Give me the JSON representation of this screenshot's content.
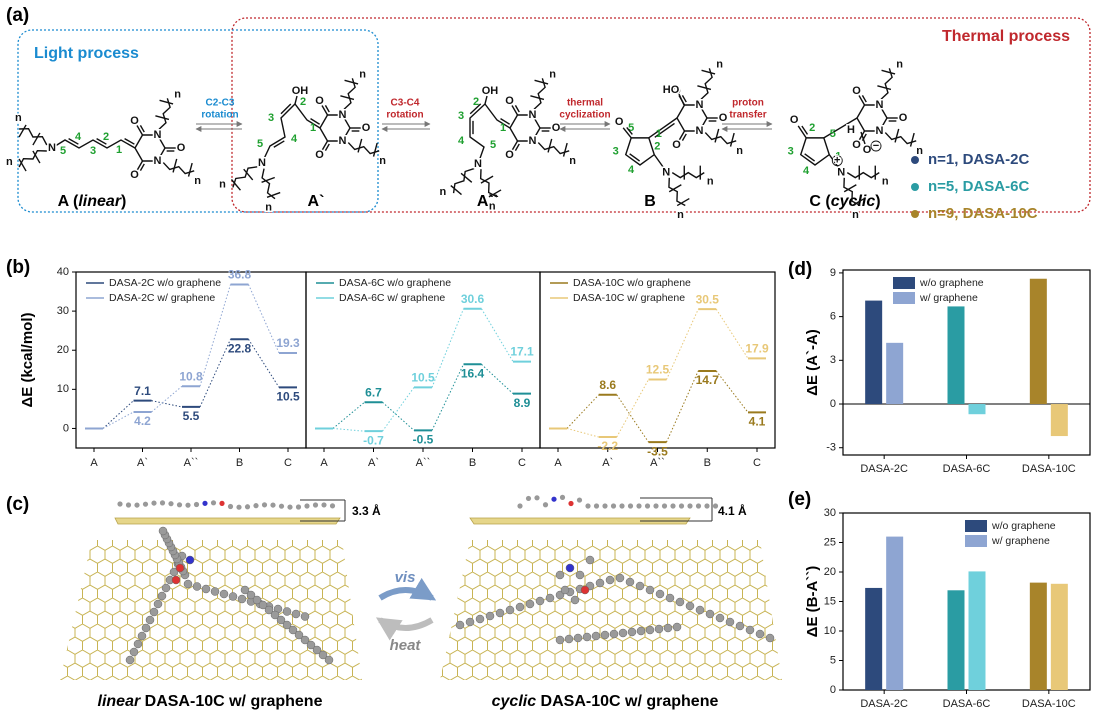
{
  "panel_labels": {
    "a": "(a)",
    "b": "(b)",
    "c": "(c)",
    "d": "(d)",
    "e": "(e)"
  },
  "scheme": {
    "light_process": "Light process",
    "thermal_process": "Thermal process",
    "atoms": {
      "O": "O",
      "N": "N",
      "OH": "OH",
      "HO": "HO",
      "H": "H",
      "n": "n",
      "plus": "+",
      "minus": "−"
    },
    "positions": [
      1,
      2,
      3,
      4,
      5
    ],
    "structures": [
      {
        "label": [
          "A (",
          "linear",
          ")"
        ]
      },
      {
        "label": [
          "A`"
        ]
      },
      {
        "label": [
          "A``"
        ]
      },
      {
        "label": [
          "B"
        ]
      },
      {
        "label": [
          "C (",
          "cyclic",
          ")"
        ]
      }
    ],
    "steps": [
      [
        "C2-C3",
        "rotation"
      ],
      [
        "C3-C4",
        "rotation"
      ],
      [
        "thermal",
        "cyclization"
      ],
      [
        "proton",
        "transfer"
      ]
    ],
    "legend": [
      {
        "label": "n=1, DASA-2C",
        "color": "#2d4a7c"
      },
      {
        "label": "n=5, DASA-6C",
        "color": "#2a9ca3"
      },
      {
        "label": "n=9, DASA-10C",
        "color": "#a8842a"
      }
    ]
  },
  "graphene_panel": {
    "gaps": [
      "3.3 Å",
      "4.1 Å"
    ],
    "forward": "vis",
    "backward": "heat",
    "captions": [
      [
        "linear",
        " DASA-10C w/ graphene"
      ],
      [
        "cyclic",
        " DASA-10C w/ graphene"
      ]
    ]
  },
  "chart_data": [
    {
      "type": "energy_profile",
      "ylabel": "ΔE (kcal/mol)",
      "ylim": [
        -5,
        40
      ],
      "yticks": [
        0,
        10,
        20,
        30,
        40
      ],
      "categories": [
        "A",
        "A`",
        "A``",
        "B",
        "C"
      ],
      "legend": "upper left",
      "series": [
        {
          "name": "DASA-2C w/o graphene",
          "color": "#2d4a7c",
          "values": [
            0,
            7.1,
            5.5,
            22.8,
            10.5
          ],
          "value_labels": [
            null,
            "7.1",
            "5.5",
            "22.8",
            "10.5"
          ]
        },
        {
          "name": "DASA-2C w/ graphene",
          "color": "#8ea5d2",
          "values": [
            0,
            4.2,
            10.8,
            36.8,
            19.3
          ],
          "value_labels": [
            null,
            "4.2",
            "10.8",
            "36.8",
            "19.3"
          ]
        }
      ]
    },
    {
      "type": "energy_profile",
      "ylim": [
        -5,
        40
      ],
      "categories": [
        "A",
        "A`",
        "A``",
        "B",
        "C"
      ],
      "legend": "upper left",
      "series": [
        {
          "name": "DASA-6C w/o graphene",
          "color": "#1f8f96",
          "values": [
            0,
            6.7,
            -0.5,
            16.4,
            8.9
          ],
          "value_labels": [
            null,
            "6.7",
            "-0.5",
            "16.4",
            "8.9"
          ]
        },
        {
          "name": "DASA-6C w/ graphene",
          "color": "#6fd0dc",
          "values": [
            0,
            -0.7,
            10.5,
            30.6,
            17.1
          ],
          "value_labels": [
            null,
            "-0.7",
            "10.5",
            "30.6",
            "17.1"
          ]
        }
      ]
    },
    {
      "type": "energy_profile",
      "ylim": [
        -5,
        40
      ],
      "categories": [
        "A",
        "A`",
        "A``",
        "B",
        "C"
      ],
      "legend": "upper left",
      "series": [
        {
          "name": "DASA-10C w/o graphene",
          "color": "#9a7a1e",
          "values": [
            0,
            8.6,
            -3.5,
            14.7,
            4.1
          ],
          "value_labels": [
            null,
            "8.6",
            "-3.5",
            "14.7",
            "4.1"
          ]
        },
        {
          "name": "DASA-10C w/ graphene",
          "color": "#e8c878",
          "values": [
            0,
            -2.2,
            12.5,
            30.5,
            17.9
          ],
          "value_labels": [
            null,
            "-2.2",
            "12.5",
            "30.5",
            "17.9"
          ]
        }
      ]
    },
    {
      "type": "bar",
      "ylabel": "ΔE (A`-A)",
      "ylim": [
        -3.5,
        9.2
      ],
      "yticks": [
        -3,
        0,
        3,
        6,
        9
      ],
      "categories": [
        "DASA-2C",
        "DASA-6C",
        "DASA-10C"
      ],
      "legend": "upper left",
      "series": [
        {
          "name": "w/o graphene",
          "colors": [
            "#2d4a7c",
            "#2a9ca3",
            "#a8842a"
          ],
          "values": [
            7.1,
            6.7,
            8.6
          ]
        },
        {
          "name": "w/ graphene",
          "colors": [
            "#8ea5d2",
            "#6fd0dc",
            "#e8c878"
          ],
          "values": [
            4.2,
            -0.7,
            -2.2
          ]
        }
      ]
    },
    {
      "type": "bar",
      "ylabel": "ΔE (B-A``)",
      "ylim": [
        0,
        30
      ],
      "yticks": [
        0,
        5,
        10,
        15,
        20,
        25,
        30
      ],
      "categories": [
        "DASA-2C",
        "DASA-6C",
        "DASA-10C"
      ],
      "legend": "upper right",
      "series": [
        {
          "name": "w/o graphene",
          "colors": [
            "#2d4a7c",
            "#2a9ca3",
            "#a8842a"
          ],
          "values": [
            17.3,
            16.9,
            18.2
          ]
        },
        {
          "name": "w/ graphene",
          "colors": [
            "#8ea5d2",
            "#6fd0dc",
            "#e8c878"
          ],
          "values": [
            26.0,
            20.1,
            18.0
          ]
        }
      ]
    }
  ]
}
